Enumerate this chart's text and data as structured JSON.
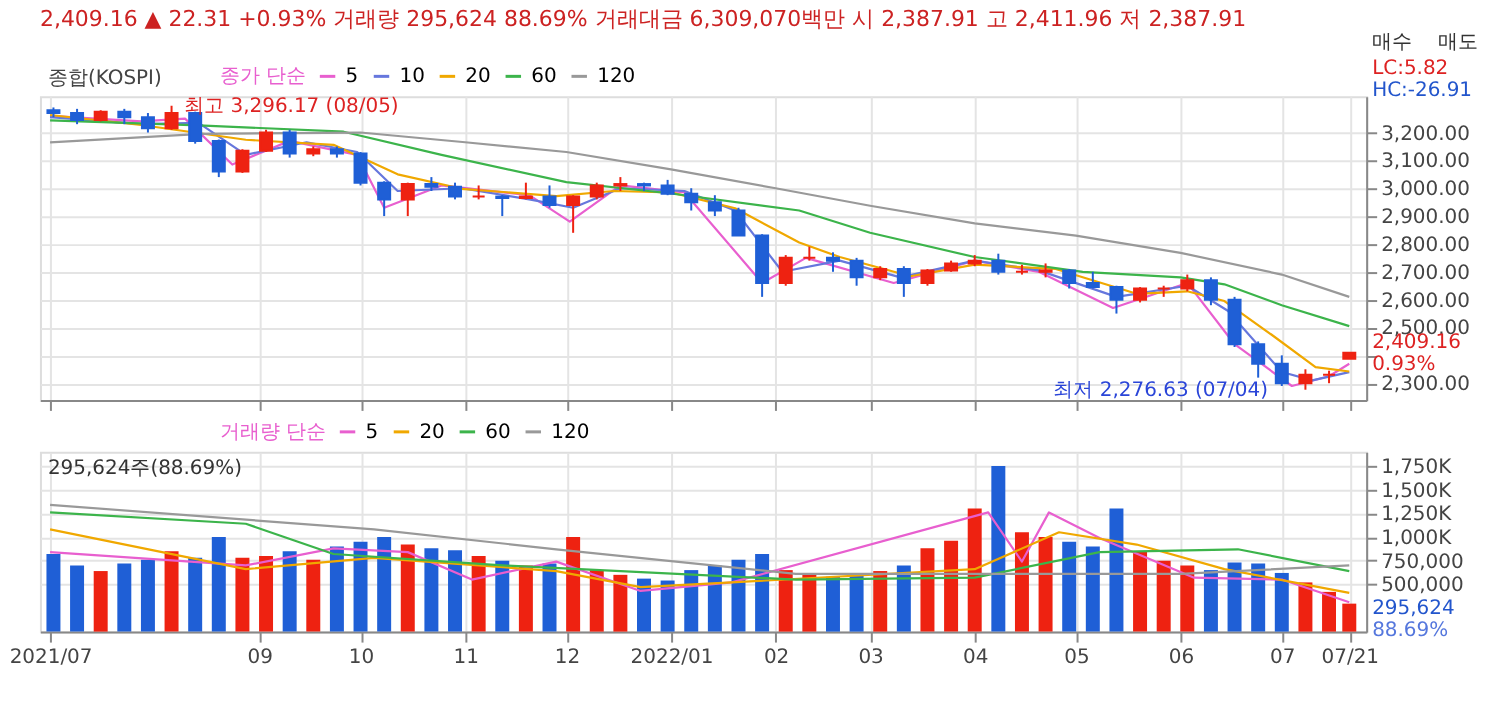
{
  "chart_data": [
    {
      "type": "candlestick",
      "title": "2,409.16 ▲ 22.31 +0.93% 거래량 295,624 88.69% 거래대금 6,309,070백만 시 2,387.91 고 2,411.96 저 2,387.91",
      "subtitle": "종합(KOSPI)",
      "legend_title": "종가 단순",
      "x": [
        "2021-07-02",
        "2021-07-09",
        "2021-07-16",
        "2021-07-23",
        "2021-07-30",
        "2021-08-06",
        "2021-08-13",
        "2021-08-20",
        "2021-08-27",
        "2021-09-03",
        "2021-09-10",
        "2021-09-17",
        "2021-09-24",
        "2021-10-01",
        "2021-10-08",
        "2021-10-15",
        "2021-10-22",
        "2021-10-29",
        "2021-11-05",
        "2021-11-12",
        "2021-11-19",
        "2021-11-26",
        "2021-12-03",
        "2021-12-10",
        "2021-12-17",
        "2021-12-24",
        "2021-12-31",
        "2022-01-07",
        "2022-01-14",
        "2022-01-21",
        "2022-01-28",
        "2022-02-04",
        "2022-02-11",
        "2022-02-18",
        "2022-02-25",
        "2022-03-04",
        "2022-03-11",
        "2022-03-18",
        "2022-03-25",
        "2022-04-01",
        "2022-04-08",
        "2022-04-15",
        "2022-04-22",
        "2022-04-29",
        "2022-05-06",
        "2022-05-13",
        "2022-05-20",
        "2022-05-27",
        "2022-06-03",
        "2022-06-10",
        "2022-06-17",
        "2022-06-24",
        "2022-07-01",
        "2022-07-08",
        "2022-07-15",
        "2022-07-21"
      ],
      "ohlc": [
        [
          3280,
          3290,
          3255,
          3270
        ],
        [
          3270,
          3285,
          3230,
          3245
        ],
        [
          3245,
          3280,
          3240,
          3275
        ],
        [
          3275,
          3285,
          3230,
          3255
        ],
        [
          3255,
          3270,
          3200,
          3215
        ],
        [
          3215,
          3296.17,
          3210,
          3270
        ],
        [
          3270,
          3275,
          3160,
          3170
        ],
        [
          3170,
          3175,
          3040,
          3060
        ],
        [
          3060,
          3140,
          3055,
          3135
        ],
        [
          3135,
          3210,
          3130,
          3200
        ],
        [
          3200,
          3210,
          3110,
          3125
        ],
        [
          3125,
          3150,
          3115,
          3140
        ],
        [
          3140,
          3150,
          3110,
          3125
        ],
        [
          3125,
          3130,
          3010,
          3020
        ],
        [
          3020,
          3025,
          2900,
          2960
        ],
        [
          2960,
          3020,
          2900,
          3015
        ],
        [
          3015,
          3040,
          2990,
          3005
        ],
        [
          3005,
          3020,
          2960,
          2970
        ],
        [
          2970,
          3010,
          2960,
          2970
        ],
        [
          2970,
          2975,
          2900,
          2965
        ],
        [
          2965,
          3020,
          2960,
          2970
        ],
        [
          2970,
          3010,
          2930,
          2940
        ],
        [
          2940,
          2975,
          2840,
          2970
        ],
        [
          2970,
          3020,
          2960,
          3010
        ],
        [
          3010,
          3040,
          2990,
          3015
        ],
        [
          3015,
          3020,
          2990,
          3010
        ],
        [
          3010,
          3030,
          2975,
          2980
        ],
        [
          2980,
          3000,
          2920,
          2950
        ],
        [
          2950,
          2975,
          2900,
          2920
        ],
        [
          2920,
          2930,
          2830,
          2830
        ],
        [
          2830,
          2835,
          2610,
          2660
        ],
        [
          2660,
          2760,
          2650,
          2750
        ],
        [
          2750,
          2790,
          2740,
          2750
        ],
        [
          2750,
          2770,
          2700,
          2740
        ],
        [
          2740,
          2750,
          2650,
          2680
        ],
        [
          2680,
          2720,
          2670,
          2710
        ],
        [
          2710,
          2720,
          2610,
          2660
        ],
        [
          2660,
          2710,
          2650,
          2705
        ],
        [
          2705,
          2740,
          2700,
          2730
        ],
        [
          2730,
          2760,
          2720,
          2740
        ],
        [
          2740,
          2765,
          2690,
          2700
        ],
        [
          2700,
          2725,
          2690,
          2700
        ],
        [
          2700,
          2730,
          2680,
          2705
        ],
        [
          2705,
          2710,
          2640,
          2660
        ],
        [
          2660,
          2700,
          2640,
          2645
        ],
        [
          2645,
          2650,
          2550,
          2600
        ],
        [
          2600,
          2645,
          2590,
          2640
        ],
        [
          2640,
          2650,
          2610,
          2640
        ],
        [
          2640,
          2690,
          2630,
          2670
        ],
        [
          2670,
          2680,
          2580,
          2600
        ],
        [
          2600,
          2610,
          2430,
          2440
        ],
        [
          2440,
          2450,
          2320,
          2370
        ],
        [
          2370,
          2400,
          2290,
          2300
        ],
        [
          2300,
          2350,
          2276.63,
          2330
        ],
        [
          2330,
          2345,
          2300,
          2330
        ],
        [
          2387.91,
          2411.96,
          2387.91,
          2409.16
        ]
      ],
      "colors": [
        "#1f5fd6",
        "#1f5fd6",
        "#ee2211",
        "#1f5fd6",
        "#1f5fd6",
        "#ee2211",
        "#1f5fd6",
        "#1f5fd6",
        "#ee2211",
        "#ee2211",
        "#1f5fd6",
        "#ee2211",
        "#1f5fd6",
        "#1f5fd6",
        "#1f5fd6",
        "#ee2211",
        "#1f5fd6",
        "#1f5fd6",
        "#ee2211",
        "#1f5fd6",
        "#ee2211",
        "#1f5fd6",
        "#ee2211",
        "#ee2211",
        "#ee2211",
        "#1f5fd6",
        "#1f5fd6",
        "#1f5fd6",
        "#1f5fd6",
        "#1f5fd6",
        "#1f5fd6",
        "#ee2211",
        "#ee2211",
        "#1f5fd6",
        "#1f5fd6",
        "#ee2211",
        "#1f5fd6",
        "#ee2211",
        "#ee2211",
        "#ee2211",
        "#1f5fd6",
        "#ee2211",
        "#ee2211",
        "#1f5fd6",
        "#1f5fd6",
        "#1f5fd6",
        "#ee2211",
        "#ee2211",
        "#ee2211",
        "#1f5fd6",
        "#1f5fd6",
        "#1f5fd6",
        "#1f5fd6",
        "#ee2211",
        "#ee2211",
        "#ee2211"
      ],
      "series": [
        {
          "type": "line",
          "name": "5",
          "color": "#e85fcf",
          "x": [
            "2021-07-01",
            "2021-07-28",
            "2021-08-10",
            "2021-08-24",
            "2021-09-10",
            "2021-09-30",
            "2021-10-08",
            "2021-10-25",
            "2021-11-20",
            "2021-12-02",
            "2021-12-17",
            "2022-01-05",
            "2022-01-28",
            "2022-02-10",
            "2022-03-08",
            "2022-04-01",
            "2022-04-20",
            "2022-05-12",
            "2022-06-03",
            "2022-06-17",
            "2022-07-04",
            "2022-07-15",
            "2022-07-21"
          ],
          "values": [
            3260,
            3240,
            3250,
            3085,
            3170,
            3120,
            2930,
            3010,
            2975,
            2880,
            3010,
            2985,
            2660,
            2750,
            2660,
            2740,
            2700,
            2570,
            2660,
            2440,
            2290,
            2325,
            2370
          ]
        },
        {
          "type": "line",
          "name": "10",
          "color": "#6677dd",
          "x": [
            "2021-07-01",
            "2021-07-28",
            "2021-08-14",
            "2021-08-28",
            "2021-09-15",
            "2021-09-30",
            "2021-10-12",
            "2021-10-31",
            "2021-11-20",
            "2021-12-03",
            "2021-12-17",
            "2022-01-05",
            "2022-01-20",
            "2022-02-03",
            "2022-02-20",
            "2022-03-10",
            "2022-04-01",
            "2022-04-20",
            "2022-05-13",
            "2022-06-03",
            "2022-06-15",
            "2022-07-01",
            "2022-07-10",
            "2022-07-21"
          ],
          "values": [
            3255,
            3230,
            3235,
            3120,
            3165,
            3130,
            2990,
            3000,
            2960,
            2930,
            3000,
            2990,
            2920,
            2700,
            2740,
            2680,
            2740,
            2705,
            2610,
            2650,
            2560,
            2340,
            2310,
            2340
          ]
        },
        {
          "type": "line",
          "name": "20",
          "color": "#f0a800",
          "x": [
            "2021-07-01",
            "2021-07-28",
            "2021-08-28",
            "2021-09-23",
            "2021-10-12",
            "2021-10-31",
            "2021-11-28",
            "2021-12-15",
            "2022-01-01",
            "2022-01-20",
            "2022-02-08",
            "2022-02-20",
            "2022-03-13",
            "2022-04-01",
            "2022-04-25",
            "2022-05-19",
            "2022-06-03",
            "2022-06-14",
            "2022-06-28",
            "2022-07-11",
            "2022-07-21"
          ],
          "values": [
            3263,
            3227,
            3174,
            3156,
            3050,
            2998,
            2972,
            2990,
            2985,
            2928,
            2805,
            2753,
            2684,
            2726,
            2710,
            2621,
            2630,
            2595,
            2474,
            2358,
            2342
          ]
        },
        {
          "type": "line",
          "name": "60",
          "color": "#3cb44b",
          "x": [
            "2021-07-01",
            "2021-08-14",
            "2021-09-26",
            "2021-10-25",
            "2021-12-01",
            "2022-01-01",
            "2022-02-08",
            "2022-03-01",
            "2022-04-01",
            "2022-05-03",
            "2022-06-01",
            "2022-06-14",
            "2022-07-01",
            "2022-07-21"
          ],
          "values": [
            3244,
            3226,
            3203,
            3120,
            3022,
            2981,
            2920,
            2840,
            2753,
            2700,
            2680,
            2655,
            2580,
            2505
          ]
        },
        {
          "type": "line",
          "name": "120",
          "color": "#999999",
          "x": [
            "2021-07-01",
            "2021-08-15",
            "2021-10-01",
            "2021-11-01",
            "2021-12-01",
            "2022-01-01",
            "2022-02-01",
            "2022-03-01",
            "2022-04-01",
            "2022-05-01",
            "2022-06-01",
            "2022-07-01",
            "2022-07-21"
          ],
          "values": [
            3165,
            3195,
            3200,
            3165,
            3130,
            3068,
            3000,
            2937,
            2874,
            2830,
            2768,
            2690,
            2610
          ]
        }
      ],
      "xlim": [
        "2021-06-28",
        "2022-07-26"
      ],
      "xticks": [
        {
          "value": "2021-07-01",
          "label": null
        },
        {
          "value": "2021-09-01",
          "label": null
        },
        {
          "value": "2021-10-01",
          "label": null
        },
        {
          "value": "2021-11-01",
          "label": null
        },
        {
          "value": "2021-12-01",
          "label": null
        },
        {
          "value": "2022-01-01",
          "label": null
        },
        {
          "value": "2022-02-01",
          "label": null
        },
        {
          "value": "2022-03-01",
          "label": null
        },
        {
          "value": "2022-04-01",
          "label": null
        },
        {
          "value": "2022-05-01",
          "label": null
        },
        {
          "value": "2022-06-01",
          "label": null
        },
        {
          "value": "2022-07-01",
          "label": null
        },
        {
          "value": "2022-07-21",
          "label": null
        }
      ],
      "ylim": [
        2240,
        3330
      ],
      "yticks": [
        {
          "value": 2300,
          "label": "2,300.00"
        },
        {
          "value": 2400,
          "label": null
        },
        {
          "value": 2500,
          "label": "2,500.00"
        },
        {
          "value": 2600,
          "label": "2,600.00"
        },
        {
          "value": 2700,
          "label": "2,700.00"
        },
        {
          "value": 2800,
          "label": "2,800.00"
        },
        {
          "value": 2900,
          "label": "2,900.00"
        },
        {
          "value": 3000,
          "label": "3,000.00"
        },
        {
          "value": 3100,
          "label": "3,100.00"
        },
        {
          "value": 3200,
          "label": "3,200.00"
        }
      ],
      "grid": true,
      "legend": "top left",
      "tick_labels": "y",
      "annotations": [
        {
          "text": "최고 3,296.17 (08/05)",
          "x": "2021-08-05",
          "y": 3296.17
        },
        {
          "text": "최저 2,276.63 (07/04)",
          "x": "2022-07-04",
          "y": 2276.63
        },
        "매수",
        "매도",
        "LC:5.82",
        "HC:-26.91",
        "2,409.16",
        "0.93%"
      ]
    },
    {
      "type": "bar",
      "legend_title": "거래량 단순",
      "x": [
        "2021-07-02",
        "2021-07-09",
        "2021-07-16",
        "2021-07-23",
        "2021-07-30",
        "2021-08-06",
        "2021-08-13",
        "2021-08-20",
        "2021-08-27",
        "2021-09-03",
        "2021-09-10",
        "2021-09-17",
        "2021-09-24",
        "2021-10-01",
        "2021-10-08",
        "2021-10-15",
        "2021-10-22",
        "2021-10-29",
        "2021-11-05",
        "2021-11-12",
        "2021-11-19",
        "2021-11-26",
        "2021-12-03",
        "2021-12-10",
        "2021-12-17",
        "2021-12-24",
        "2021-12-31",
        "2022-01-07",
        "2022-01-14",
        "2022-01-21",
        "2022-01-28",
        "2022-02-04",
        "2022-02-11",
        "2022-02-18",
        "2022-02-25",
        "2022-03-04",
        "2022-03-11",
        "2022-03-18",
        "2022-03-25",
        "2022-04-01",
        "2022-04-08",
        "2022-04-15",
        "2022-04-22",
        "2022-04-29",
        "2022-05-06",
        "2022-05-13",
        "2022-05-20",
        "2022-05-27",
        "2022-06-03",
        "2022-06-10",
        "2022-06-17",
        "2022-06-24",
        "2022-07-01",
        "2022-07-08",
        "2022-07-15",
        "2022-07-21"
      ],
      "values": [
        820000,
        700000,
        640000,
        720000,
        760000,
        850000,
        780000,
        1000000,
        780000,
        800000,
        850000,
        760000,
        900000,
        950000,
        1000000,
        920000,
        880000,
        860000,
        800000,
        750000,
        700000,
        720000,
        1000000,
        650000,
        600000,
        560000,
        540000,
        650000,
        700000,
        760000,
        820000,
        650000,
        600000,
        580000,
        600000,
        640000,
        700000,
        880000,
        960000,
        1300000,
        1750000,
        1050000,
        1000000,
        950000,
        900000,
        1300000,
        850000,
        750000,
        700000,
        650000,
        730000,
        720000,
        620000,
        520000,
        420000,
        295624
      ],
      "colors": [
        "#1f5fd6",
        "#1f5fd6",
        "#ee2211",
        "#1f5fd6",
        "#1f5fd6",
        "#ee2211",
        "#1f5fd6",
        "#1f5fd6",
        "#ee2211",
        "#ee2211",
        "#1f5fd6",
        "#ee2211",
        "#1f5fd6",
        "#1f5fd6",
        "#1f5fd6",
        "#ee2211",
        "#1f5fd6",
        "#1f5fd6",
        "#ee2211",
        "#1f5fd6",
        "#ee2211",
        "#1f5fd6",
        "#ee2211",
        "#ee2211",
        "#ee2211",
        "#1f5fd6",
        "#1f5fd6",
        "#1f5fd6",
        "#1f5fd6",
        "#1f5fd6",
        "#1f5fd6",
        "#ee2211",
        "#ee2211",
        "#1f5fd6",
        "#1f5fd6",
        "#ee2211",
        "#1f5fd6",
        "#ee2211",
        "#ee2211",
        "#ee2211",
        "#1f5fd6",
        "#ee2211",
        "#ee2211",
        "#1f5fd6",
        "#1f5fd6",
        "#1f5fd6",
        "#ee2211",
        "#ee2211",
        "#ee2211",
        "#1f5fd6",
        "#1f5fd6",
        "#1f5fd6",
        "#1f5fd6",
        "#ee2211",
        "#ee2211",
        "#ee2211"
      ],
      "series": [
        {
          "type": "line",
          "name": "5",
          "color": "#e85fcf",
          "x": [
            "2021-07-01",
            "2021-08-28",
            "2021-09-23",
            "2021-10-15",
            "2021-11-03",
            "2021-11-28",
            "2021-12-23",
            "2022-01-19",
            "2022-04-05",
            "2022-04-15",
            "2022-04-23",
            "2022-05-08",
            "2022-06-05",
            "2022-07-01",
            "2022-07-21"
          ],
          "values": [
            840000,
            700000,
            880000,
            840000,
            550000,
            740000,
            430000,
            520000,
            1260000,
            740000,
            1260000,
            990000,
            570000,
            550000,
            310000
          ]
        },
        {
          "type": "line",
          "name": "20",
          "color": "#f0a800",
          "x": [
            "2021-07-01",
            "2021-08-28",
            "2021-10-05",
            "2021-11-28",
            "2021-12-23",
            "2022-01-19",
            "2022-04-01",
            "2022-04-26",
            "2022-05-19",
            "2022-06-14",
            "2022-07-21"
          ],
          "values": [
            1080000,
            660000,
            780000,
            640000,
            470000,
            520000,
            660000,
            1050000,
            920000,
            660000,
            410000
          ]
        },
        {
          "type": "line",
          "name": "60",
          "color": "#3cb44b",
          "x": [
            "2021-07-01",
            "2021-08-28",
            "2021-09-23",
            "2021-11-12",
            "2022-02-07",
            "2022-04-01",
            "2022-05-08",
            "2022-06-18",
            "2022-07-21"
          ],
          "values": [
            1260000,
            1140000,
            820000,
            700000,
            550000,
            570000,
            840000,
            870000,
            640000
          ]
        },
        {
          "type": "line",
          "name": "120",
          "color": "#999999",
          "x": [
            "2021-07-01",
            "2021-10-05",
            "2021-11-28",
            "2022-02-07",
            "2022-06-01",
            "2022-07-21"
          ],
          "values": [
            1340000,
            1080000,
            870000,
            610000,
            610000,
            700000
          ]
        }
      ],
      "xlim": [
        "2021-06-28",
        "2022-07-26"
      ],
      "xticks": [
        {
          "value": "2021-07-01",
          "label": "2021/07"
        },
        {
          "value": "2021-09-01",
          "label": "09"
        },
        {
          "value": "2021-10-01",
          "label": "10"
        },
        {
          "value": "2021-11-01",
          "label": "11"
        },
        {
          "value": "2021-12-01",
          "label": "12"
        },
        {
          "value": "2022-01-01",
          "label": "2022/01"
        },
        {
          "value": "2022-02-01",
          "label": "02"
        },
        {
          "value": "2022-03-01",
          "label": "03"
        },
        {
          "value": "2022-04-01",
          "label": "04"
        },
        {
          "value": "2022-05-01",
          "label": "05"
        },
        {
          "value": "2022-06-01",
          "label": "06"
        },
        {
          "value": "2022-07-01",
          "label": "07"
        },
        {
          "value": "2022-07-21",
          "label": "07/21"
        }
      ],
      "ylim": [
        0,
        1900000
      ],
      "yticks": [
        {
          "value": 500000,
          "label": "500,000"
        },
        {
          "value": 750000,
          "label": "750,000"
        },
        {
          "value": 1000000,
          "label": "1,000K"
        },
        {
          "value": 1250000,
          "label": "1,250K"
        },
        {
          "value": 1500000,
          "label": "1,500K"
        },
        {
          "value": 1750000,
          "label": "1,750K"
        }
      ],
      "grid": true,
      "legend": "top left",
      "annotations": [
        "295,624주(88.69%)",
        "295,624",
        "88.69%"
      ]
    }
  ]
}
